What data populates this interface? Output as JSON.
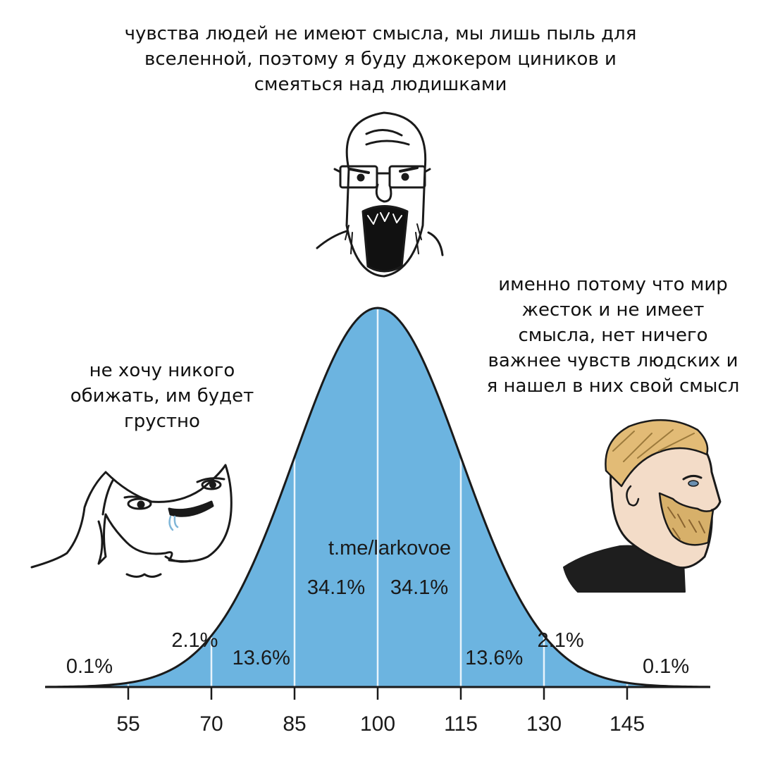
{
  "captions": {
    "top": [
      "чувства людей не имеют смысла, мы лишь пыль для",
      "вселенной, поэтому я буду джокером циников и",
      "смеяться над людишками"
    ],
    "left": [
      "не хочу никого",
      "обижать, им будет",
      "грустно"
    ],
    "right": [
      "именно потому что мир",
      "жесток и не имеет",
      "смысла, нет ничего",
      "важнее чувств людских и",
      "я нашел в них свой смысл"
    ]
  },
  "watermark": "t.me/larkovoe",
  "colors": {
    "fill": "#6cb4e0",
    "stroke": "#1a1a1a",
    "divider": "#e8f3fb"
  },
  "characters": {
    "top": "soyjak-glasses-screaming",
    "left": "wojak-smiling-drooling",
    "right": "chad-bearded-profile"
  },
  "chart_data": {
    "type": "area",
    "distribution": "normal",
    "mean": 100,
    "sd": 15,
    "x_ticks": [
      55,
      70,
      85,
      100,
      115,
      130,
      145
    ],
    "xlim": [
      40,
      160
    ],
    "segment_labels": [
      {
        "text": "0.1%",
        "x": 48
      },
      {
        "text": "2.1%",
        "x": 67
      },
      {
        "text": "13.6%",
        "x": 79
      },
      {
        "text": "34.1%",
        "x": 92.5
      },
      {
        "text": "34.1%",
        "x": 107.5
      },
      {
        "text": "13.6%",
        "x": 121
      },
      {
        "text": "2.1%",
        "x": 133
      },
      {
        "text": "0.1%",
        "x": 152
      }
    ]
  }
}
